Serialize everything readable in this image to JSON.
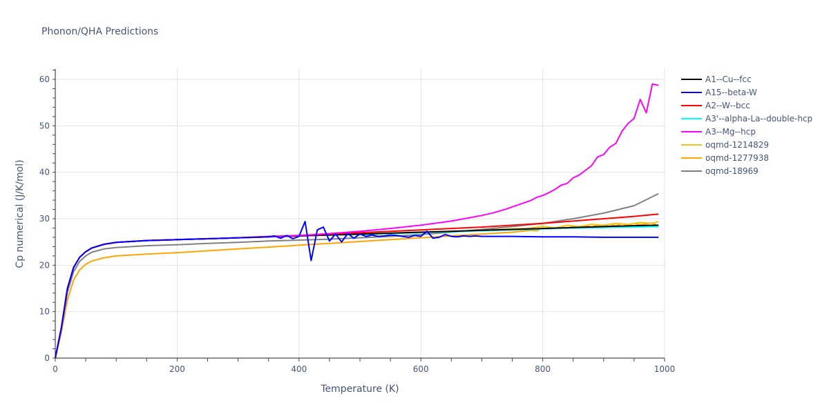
{
  "chart_data": {
    "type": "line",
    "title": "Phonon/QHA Predictions",
    "xlabel": "Temperature (K)",
    "ylabel": "Cp numerical (J/K/mol)",
    "xlim": [
      0,
      1000
    ],
    "ylim": [
      0,
      62
    ],
    "xticks": [
      0,
      200,
      400,
      600,
      800,
      1000
    ],
    "yticks": [
      0,
      10,
      20,
      30,
      40,
      50,
      60
    ],
    "grid": true,
    "legend_position": "right",
    "series": [
      {
        "name": "A1--Cu--fcc",
        "color": "#000000",
        "x": [
          0,
          10,
          20,
          30,
          40,
          50,
          60,
          80,
          100,
          150,
          200,
          250,
          300,
          350,
          400,
          450,
          500,
          550,
          600,
          650,
          700,
          750,
          800,
          850,
          900,
          950,
          990
        ],
        "y": [
          0,
          6.5,
          15,
          19.5,
          21.7,
          22.9,
          23.7,
          24.5,
          24.9,
          25.3,
          25.5,
          25.7,
          25.9,
          26.1,
          26.3,
          26.5,
          26.7,
          26.9,
          27.1,
          27.3,
          27.5,
          27.7,
          27.9,
          28.1,
          28.3,
          28.5,
          28.6
        ]
      },
      {
        "name": "A15--beta-W",
        "color": "#0000ff",
        "x": [
          0,
          10,
          20,
          30,
          40,
          50,
          60,
          80,
          100,
          150,
          200,
          250,
          300,
          350,
          360,
          370,
          380,
          390,
          400,
          410,
          420,
          430,
          440,
          450,
          460,
          470,
          480,
          490,
          500,
          510,
          520,
          530,
          540,
          550,
          560,
          570,
          580,
          590,
          600,
          610,
          620,
          630,
          640,
          650,
          660,
          670,
          680,
          690,
          700,
          750,
          800,
          850,
          900,
          950,
          990
        ],
        "y": [
          0,
          6.5,
          15,
          19.5,
          21.7,
          22.9,
          23.7,
          24.5,
          24.9,
          25.3,
          25.5,
          25.7,
          25.9,
          26.1,
          26.3,
          25.8,
          26.4,
          25.7,
          26.2,
          29.4,
          21.0,
          27.6,
          28.2,
          25.2,
          26.7,
          25.0,
          26.8,
          25.8,
          26.7,
          26.2,
          26.5,
          26.2,
          26.3,
          26.5,
          26.4,
          26.2,
          26.0,
          26.4,
          26.2,
          27.3,
          25.8,
          26.0,
          26.6,
          26.2,
          26.1,
          26.3,
          26.2,
          26.3,
          26.2,
          26.2,
          26.1,
          26.1,
          26.0,
          26.0,
          26.0
        ]
      },
      {
        "name": "A2--W--bcc",
        "color": "#ff0000",
        "x": [
          0,
          10,
          20,
          30,
          40,
          50,
          60,
          80,
          100,
          150,
          200,
          250,
          300,
          350,
          400,
          450,
          500,
          550,
          600,
          650,
          700,
          750,
          800,
          850,
          900,
          950,
          990
        ],
        "y": [
          0,
          6.5,
          15,
          19.5,
          21.7,
          22.9,
          23.7,
          24.5,
          24.9,
          25.3,
          25.5,
          25.7,
          25.9,
          26.2,
          26.4,
          26.7,
          27.0,
          27.3,
          27.6,
          27.9,
          28.2,
          28.6,
          29.0,
          29.5,
          30.0,
          30.5,
          31.0
        ]
      },
      {
        "name": "A3'--alpha-La--double-hcp",
        "color": "#00ffff",
        "x": [
          0,
          10,
          20,
          30,
          40,
          50,
          60,
          80,
          100,
          150,
          200,
          250,
          300,
          350,
          400,
          450,
          500,
          550,
          600,
          650,
          700,
          750,
          800,
          850,
          900,
          950,
          990
        ],
        "y": [
          0,
          6.5,
          15,
          19.5,
          21.7,
          22.9,
          23.7,
          24.5,
          24.9,
          25.3,
          25.5,
          25.7,
          25.9,
          26.1,
          26.3,
          26.5,
          26.6,
          26.8,
          27.0,
          27.2,
          27.4,
          27.6,
          27.8,
          28.0,
          28.1,
          28.2,
          28.3
        ]
      },
      {
        "name": "A3--Mg--hcp",
        "color": "#ff00ff",
        "x": [
          0,
          10,
          20,
          30,
          40,
          50,
          60,
          80,
          100,
          150,
          200,
          250,
          300,
          350,
          400,
          450,
          500,
          550,
          600,
          650,
          700,
          720,
          740,
          760,
          780,
          790,
          800,
          810,
          820,
          830,
          840,
          850,
          860,
          870,
          880,
          890,
          900,
          910,
          920,
          930,
          940,
          950,
          960,
          970,
          980,
          990
        ],
        "y": [
          0,
          6.5,
          15,
          19.5,
          21.7,
          22.9,
          23.7,
          24.5,
          24.9,
          25.3,
          25.5,
          25.7,
          25.9,
          26.1,
          26.4,
          26.8,
          27.3,
          27.9,
          28.6,
          29.5,
          30.7,
          31.3,
          32.1,
          33.0,
          33.9,
          34.6,
          35.0,
          35.6,
          36.3,
          37.2,
          37.6,
          38.8,
          39.4,
          40.4,
          41.4,
          43.3,
          43.8,
          45.4,
          46.2,
          48.8,
          50.5,
          51.6,
          55.7,
          52.8,
          59.0,
          58.7
        ]
      },
      {
        "name": "oqmd-1214829",
        "color": "#f5c518",
        "x": [
          0,
          10,
          20,
          30,
          40,
          50,
          60,
          80,
          100,
          150,
          200,
          250,
          300,
          350,
          400,
          450,
          500,
          550,
          600,
          650,
          700,
          750,
          780,
          800,
          820,
          840,
          860,
          880,
          900,
          920,
          940,
          960,
          980,
          990
        ],
        "y": [
          0,
          6.5,
          15,
          19.5,
          21.7,
          22.9,
          23.7,
          24.5,
          24.9,
          25.3,
          25.5,
          25.7,
          25.9,
          26.1,
          26.3,
          26.5,
          26.7,
          26.9,
          27.1,
          27.3,
          27.5,
          27.8,
          28.0,
          28.4,
          28.0,
          28.6,
          28.3,
          28.8,
          28.6,
          29.0,
          28.8,
          29.2,
          29.0,
          29.4
        ]
      },
      {
        "name": "oqmd-1277938",
        "color": "#ffa500",
        "x": [
          0,
          10,
          20,
          30,
          40,
          50,
          60,
          80,
          100,
          150,
          200,
          250,
          300,
          350,
          400,
          450,
          500,
          550,
          600,
          650,
          700,
          750,
          780,
          790,
          800,
          810,
          820,
          830,
          840,
          850,
          860,
          870,
          880,
          890,
          900,
          910,
          920,
          930,
          940,
          950,
          960,
          970,
          980,
          990
        ],
        "y": [
          0,
          5.5,
          12.5,
          16.8,
          19.0,
          20.2,
          20.9,
          21.6,
          22.0,
          22.4,
          22.7,
          23.1,
          23.5,
          23.9,
          24.3,
          24.7,
          25.1,
          25.5,
          25.9,
          26.3,
          26.7,
          27.1,
          27.5,
          27.4,
          28.0,
          27.8,
          27.9,
          28.2,
          27.9,
          28.4,
          28.1,
          28.5,
          28.2,
          28.6,
          28.4,
          28.8,
          28.5,
          28.9,
          28.6,
          29.0,
          28.7,
          28.9,
          29.1,
          28.3
        ]
      },
      {
        "name": "oqmd-18969",
        "color": "#808080",
        "x": [
          0,
          10,
          20,
          30,
          40,
          50,
          60,
          80,
          100,
          150,
          200,
          250,
          300,
          350,
          400,
          450,
          500,
          550,
          600,
          650,
          700,
          750,
          800,
          850,
          900,
          950,
          990
        ],
        "y": [
          0,
          6.2,
          14.2,
          18.6,
          20.8,
          22.0,
          22.8,
          23.5,
          23.8,
          24.2,
          24.4,
          24.7,
          24.9,
          25.2,
          25.4,
          25.6,
          25.9,
          26.2,
          26.6,
          27.1,
          27.7,
          28.3,
          29.0,
          30.0,
          31.2,
          32.8,
          35.4
        ]
      }
    ]
  }
}
